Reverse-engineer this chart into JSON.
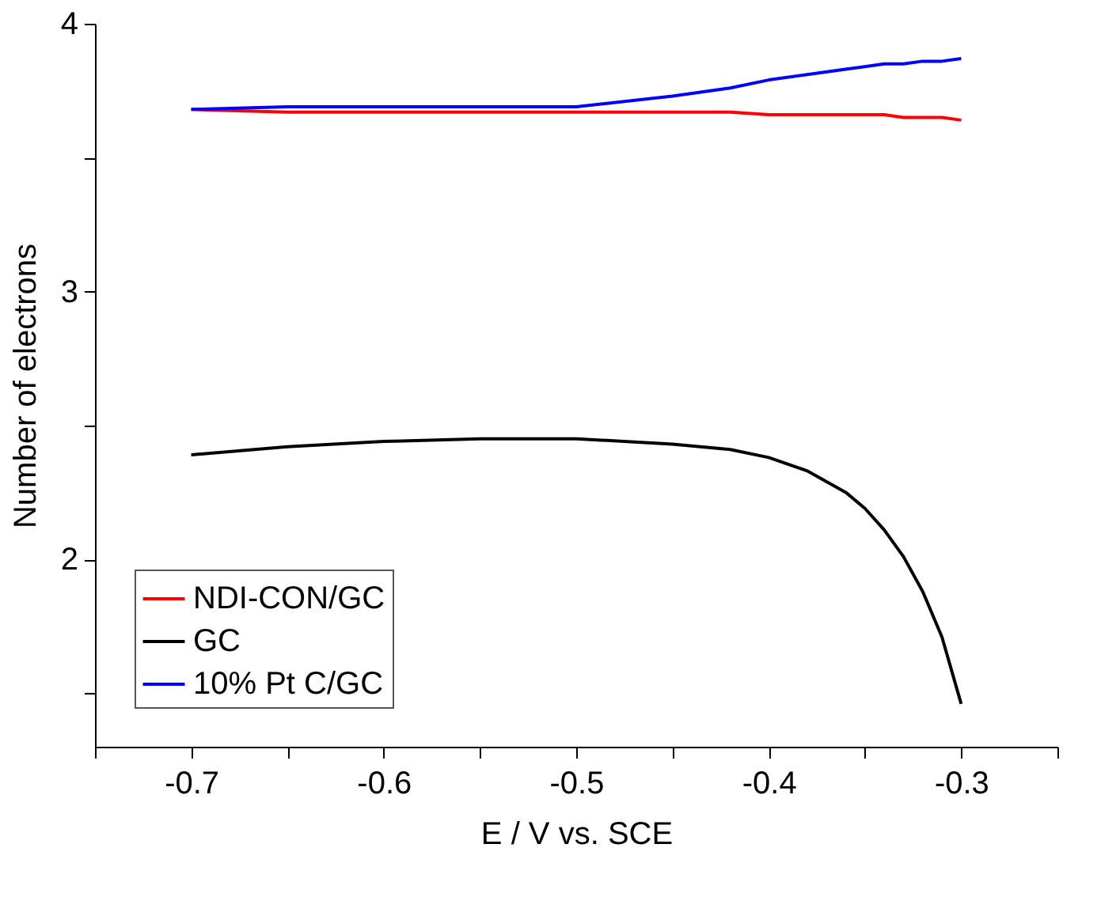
{
  "chart_data": {
    "type": "line",
    "xlabel": "E / V vs. SCE",
    "ylabel": "Number of electrons",
    "xlim": [
      -0.75,
      -0.25
    ],
    "ylim": [
      1.3,
      4
    ],
    "xticks": [
      {
        "value": -0.75,
        "label": null
      },
      -0.7,
      {
        "value": -0.65,
        "label": null
      },
      -0.6,
      {
        "value": -0.55,
        "label": null
      },
      -0.5,
      {
        "value": -0.45,
        "label": null
      },
      -0.4,
      {
        "value": -0.35,
        "label": null
      },
      -0.3,
      {
        "value": -0.25,
        "label": null
      }
    ],
    "yticks": [
      {
        "value": 1.5,
        "label": null
      },
      2,
      {
        "value": 2.5,
        "label": null
      },
      3,
      {
        "value": 3.5,
        "label": null
      },
      4
    ],
    "x": [
      -0.7,
      -0.65,
      -0.6,
      -0.55,
      -0.5,
      -0.45,
      -0.42,
      -0.4,
      -0.38,
      -0.36,
      -0.35,
      -0.34,
      -0.33,
      -0.32,
      -0.31,
      -0.3
    ],
    "series": [
      {
        "name": "NDI-CON/GC",
        "color": "#ff0000",
        "values": [
          3.68,
          3.67,
          3.67,
          3.67,
          3.67,
          3.67,
          3.67,
          3.66,
          3.66,
          3.66,
          3.66,
          3.66,
          3.65,
          3.65,
          3.65,
          3.64
        ]
      },
      {
        "name": "GC",
        "color": "#000000",
        "values": [
          2.39,
          2.42,
          2.44,
          2.45,
          2.45,
          2.43,
          2.41,
          2.38,
          2.33,
          2.25,
          2.19,
          2.11,
          2.01,
          1.88,
          1.71,
          1.46
        ]
      },
      {
        "name": "10% Pt C/GC",
        "color": "#0000ff",
        "values": [
          3.68,
          3.69,
          3.69,
          3.69,
          3.69,
          3.73,
          3.76,
          3.79,
          3.81,
          3.83,
          3.84,
          3.85,
          3.85,
          3.86,
          3.86,
          3.87
        ]
      }
    ],
    "legend": "bottom left",
    "grid": false,
    "marker": "none",
    "line_style": "solid"
  }
}
